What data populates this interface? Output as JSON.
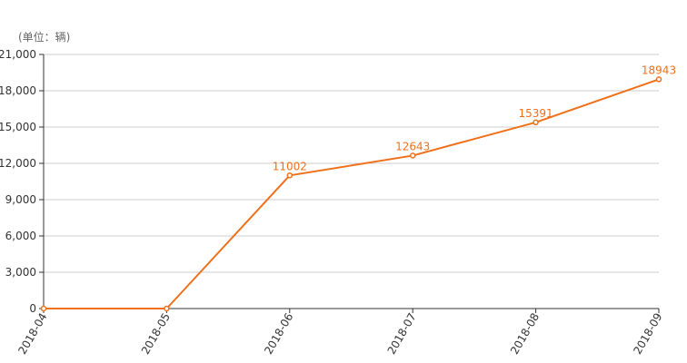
{
  "chart_data": {
    "type": "line",
    "unit_label": "(单位：辆)",
    "categories": [
      "2018-04",
      "2018-05",
      "2018-06",
      "2018-07",
      "2018-08",
      "2018-09"
    ],
    "series": [
      {
        "values": [
          0,
          0,
          11002,
          12643,
          15391,
          18943
        ],
        "data_labels": [
          "",
          "",
          "11002",
          "12643",
          "15391",
          "18943"
        ]
      }
    ],
    "ylim": [
      0,
      21000
    ],
    "yticks": [
      "0",
      "3,000",
      "6,000",
      "9,000",
      "12,000",
      "15,000",
      "18,000",
      "21,000"
    ],
    "ytick_values": [
      0,
      3000,
      6000,
      9000,
      12000,
      15000,
      18000,
      21000
    ],
    "grid": true,
    "colors": {
      "line": "#F0701A",
      "grid": "#CCCCCC",
      "axis": "#333333",
      "text": "#333333"
    }
  }
}
